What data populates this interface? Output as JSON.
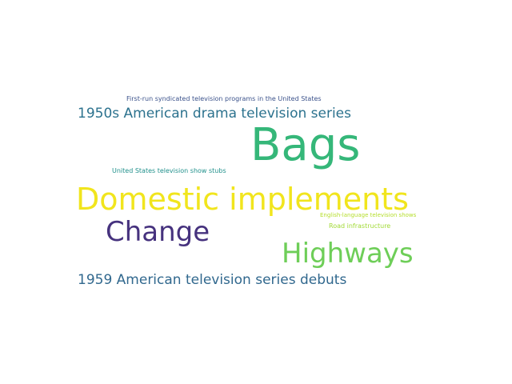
{
  "word_cloud": {
    "words": [
      {
        "text": "Bags",
        "color": "#35b779"
      },
      {
        "text": "Domestic implements",
        "color": "#f1e51d"
      },
      {
        "text": "Change",
        "color": "#46327e"
      },
      {
        "text": "Highways",
        "color": "#6ece58"
      },
      {
        "text": "1950s American drama television series",
        "color": "#2c728e"
      },
      {
        "text": "1959 American television series debuts",
        "color": "#31688e"
      },
      {
        "text": "First-run syndicated television programs in the United States",
        "color": "#3b528b"
      },
      {
        "text": "United States television show stubs",
        "color": "#21918c"
      },
      {
        "text": "English-language television shows",
        "color": "#b5de2b"
      },
      {
        "text": "Road infrastructure",
        "color": "#a2da37"
      }
    ]
  }
}
